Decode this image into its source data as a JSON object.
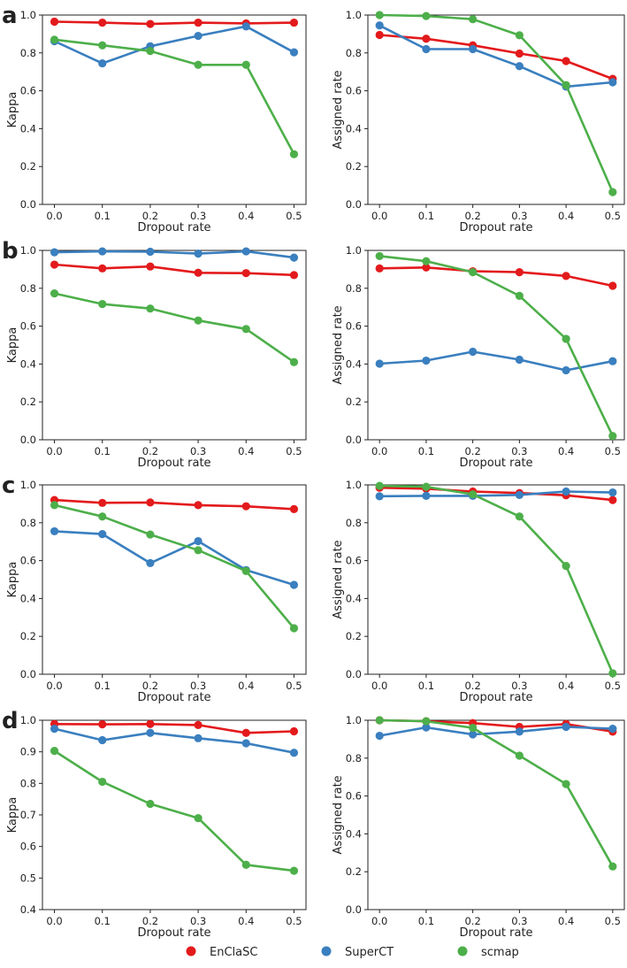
{
  "panel_letters": [
    "a",
    "b",
    "c",
    "d"
  ],
  "legend": [
    {
      "name": "EnClaSC",
      "color": "#e31a1c"
    },
    {
      "name": "SuperCT",
      "color": "#3a7fbf"
    },
    {
      "name": "scmap",
      "color": "#4daf4a"
    }
  ],
  "chart_data": [
    {
      "type": "line",
      "panel": "a",
      "title": "",
      "xlabel": "Dropout rate",
      "ylabel": "Kappa",
      "x": [
        0.0,
        0.1,
        0.2,
        0.3,
        0.4,
        0.5
      ],
      "xticks": [
        "0.0",
        "0.1",
        "0.2",
        "0.3",
        "0.4",
        "0.5"
      ],
      "ylim": [
        0.0,
        1.0
      ],
      "yticks": [
        "0.0",
        "0.2",
        "0.4",
        "0.6",
        "0.8",
        "1.0"
      ],
      "series": [
        {
          "name": "EnClaSC",
          "values": [
            0.965,
            0.96,
            0.953,
            0.96,
            0.956,
            0.96
          ]
        },
        {
          "name": "SuperCT",
          "values": [
            0.862,
            0.745,
            0.835,
            0.89,
            0.94,
            0.803
          ]
        },
        {
          "name": "scmap",
          "values": [
            0.87,
            0.84,
            0.81,
            0.737,
            0.737,
            0.265
          ]
        }
      ]
    },
    {
      "type": "line",
      "panel": "a",
      "title": "",
      "xlabel": "Dropout rate",
      "ylabel": "Assigned rate",
      "x": [
        0.0,
        0.1,
        0.2,
        0.3,
        0.4,
        0.5
      ],
      "xticks": [
        "0.0",
        "0.1",
        "0.2",
        "0.3",
        "0.4",
        "0.5"
      ],
      "ylim": [
        0.0,
        1.0
      ],
      "yticks": [
        "0.0",
        "0.2",
        "0.4",
        "0.6",
        "0.8",
        "1.0"
      ],
      "series": [
        {
          "name": "EnClaSC",
          "values": [
            0.895,
            0.875,
            0.84,
            0.797,
            0.757,
            0.663
          ]
        },
        {
          "name": "SuperCT",
          "values": [
            0.945,
            0.82,
            0.82,
            0.73,
            0.622,
            0.645
          ]
        },
        {
          "name": "scmap",
          "values": [
            1.0,
            0.995,
            0.978,
            0.893,
            0.63,
            0.065
          ]
        }
      ]
    },
    {
      "type": "line",
      "panel": "b",
      "title": "",
      "xlabel": "Dropout rate",
      "ylabel": "Kappa",
      "x": [
        0.0,
        0.1,
        0.2,
        0.3,
        0.4,
        0.5
      ],
      "xticks": [
        "0.0",
        "0.1",
        "0.2",
        "0.3",
        "0.4",
        "0.5"
      ],
      "ylim": [
        0.0,
        1.0
      ],
      "yticks": [
        "0.0",
        "0.2",
        "0.4",
        "0.6",
        "0.8",
        "1.0"
      ],
      "series": [
        {
          "name": "EnClaSC",
          "values": [
            0.925,
            0.905,
            0.915,
            0.882,
            0.88,
            0.87
          ]
        },
        {
          "name": "SuperCT",
          "values": [
            0.99,
            0.995,
            0.993,
            0.983,
            0.995,
            0.962
          ]
        },
        {
          "name": "scmap",
          "values": [
            0.773,
            0.717,
            0.693,
            0.63,
            0.585,
            0.41
          ]
        }
      ]
    },
    {
      "type": "line",
      "panel": "b",
      "title": "",
      "xlabel": "Dropout rate",
      "ylabel": "Assigned rate",
      "x": [
        0.0,
        0.1,
        0.2,
        0.3,
        0.4,
        0.5
      ],
      "xticks": [
        "0.0",
        "0.1",
        "0.2",
        "0.3",
        "0.4",
        "0.5"
      ],
      "ylim": [
        0.0,
        1.0
      ],
      "yticks": [
        "0.0",
        "0.2",
        "0.4",
        "0.6",
        "0.8",
        "1.0"
      ],
      "series": [
        {
          "name": "EnClaSC",
          "values": [
            0.905,
            0.91,
            0.89,
            0.885,
            0.865,
            0.813
          ]
        },
        {
          "name": "SuperCT",
          "values": [
            0.402,
            0.418,
            0.465,
            0.423,
            0.367,
            0.415
          ]
        },
        {
          "name": "scmap",
          "values": [
            0.97,
            0.943,
            0.885,
            0.76,
            0.533,
            0.02
          ]
        }
      ]
    },
    {
      "type": "line",
      "panel": "c",
      "title": "",
      "xlabel": "Dropout rate",
      "ylabel": "Kappa",
      "x": [
        0.0,
        0.1,
        0.2,
        0.3,
        0.4,
        0.5
      ],
      "xticks": [
        "0.0",
        "0.1",
        "0.2",
        "0.3",
        "0.4",
        "0.5"
      ],
      "ylim": [
        0.0,
        1.0
      ],
      "yticks": [
        "0.0",
        "0.2",
        "0.4",
        "0.6",
        "0.8",
        "1.0"
      ],
      "series": [
        {
          "name": "EnClaSC",
          "values": [
            0.92,
            0.905,
            0.907,
            0.893,
            0.887,
            0.872
          ]
        },
        {
          "name": "SuperCT",
          "values": [
            0.755,
            0.74,
            0.587,
            0.703,
            0.55,
            0.472
          ]
        },
        {
          "name": "scmap",
          "values": [
            0.893,
            0.833,
            0.738,
            0.655,
            0.545,
            0.243
          ]
        }
      ]
    },
    {
      "type": "line",
      "panel": "c",
      "title": "",
      "xlabel": "Dropout rate",
      "ylabel": "Assigned rate",
      "x": [
        0.0,
        0.1,
        0.2,
        0.3,
        0.4,
        0.5
      ],
      "xticks": [
        "0.0",
        "0.1",
        "0.2",
        "0.3",
        "0.4",
        "0.5"
      ],
      "ylim": [
        0.0,
        1.0
      ],
      "yticks": [
        "0.0",
        "0.2",
        "0.4",
        "0.6",
        "0.8",
        "1.0"
      ],
      "series": [
        {
          "name": "EnClaSC",
          "values": [
            0.985,
            0.98,
            0.965,
            0.957,
            0.945,
            0.92
          ]
        },
        {
          "name": "SuperCT",
          "values": [
            0.94,
            0.942,
            0.942,
            0.947,
            0.965,
            0.96
          ]
        },
        {
          "name": "scmap",
          "values": [
            0.995,
            0.99,
            0.95,
            0.833,
            0.572,
            0.005
          ]
        }
      ]
    },
    {
      "type": "line",
      "panel": "d",
      "title": "",
      "xlabel": "Dropout rate",
      "ylabel": "Kappa",
      "x": [
        0.0,
        0.1,
        0.2,
        0.3,
        0.4,
        0.5
      ],
      "xticks": [
        "0.0",
        "0.1",
        "0.2",
        "0.3",
        "0.4",
        "0.5"
      ],
      "ylim": [
        0.4,
        1.0
      ],
      "yticks": [
        "0.4",
        "0.5",
        "0.6",
        "0.7",
        "0.8",
        "0.9",
        "1.0"
      ],
      "series": [
        {
          "name": "EnClaSC",
          "values": [
            0.988,
            0.987,
            0.988,
            0.985,
            0.96,
            0.965
          ]
        },
        {
          "name": "SuperCT",
          "values": [
            0.973,
            0.937,
            0.96,
            0.943,
            0.927,
            0.897
          ]
        },
        {
          "name": "scmap",
          "values": [
            0.903,
            0.805,
            0.735,
            0.69,
            0.542,
            0.523
          ]
        }
      ]
    },
    {
      "type": "line",
      "panel": "d",
      "title": "",
      "xlabel": "Dropout rate",
      "ylabel": "Assigned rate",
      "x": [
        0.0,
        0.1,
        0.2,
        0.3,
        0.4,
        0.5
      ],
      "xticks": [
        "0.0",
        "0.1",
        "0.2",
        "0.3",
        "0.4",
        "0.5"
      ],
      "ylim": [
        0.0,
        1.0
      ],
      "yticks": [
        "0.0",
        "0.2",
        "0.4",
        "0.6",
        "0.8",
        "1.0"
      ],
      "series": [
        {
          "name": "EnClaSC",
          "values": [
            1.0,
            0.995,
            0.985,
            0.965,
            0.98,
            0.94
          ]
        },
        {
          "name": "SuperCT",
          "values": [
            0.918,
            0.962,
            0.925,
            0.94,
            0.965,
            0.955
          ]
        },
        {
          "name": "scmap",
          "values": [
            1.0,
            0.995,
            0.96,
            0.813,
            0.663,
            0.228
          ]
        }
      ]
    }
  ]
}
